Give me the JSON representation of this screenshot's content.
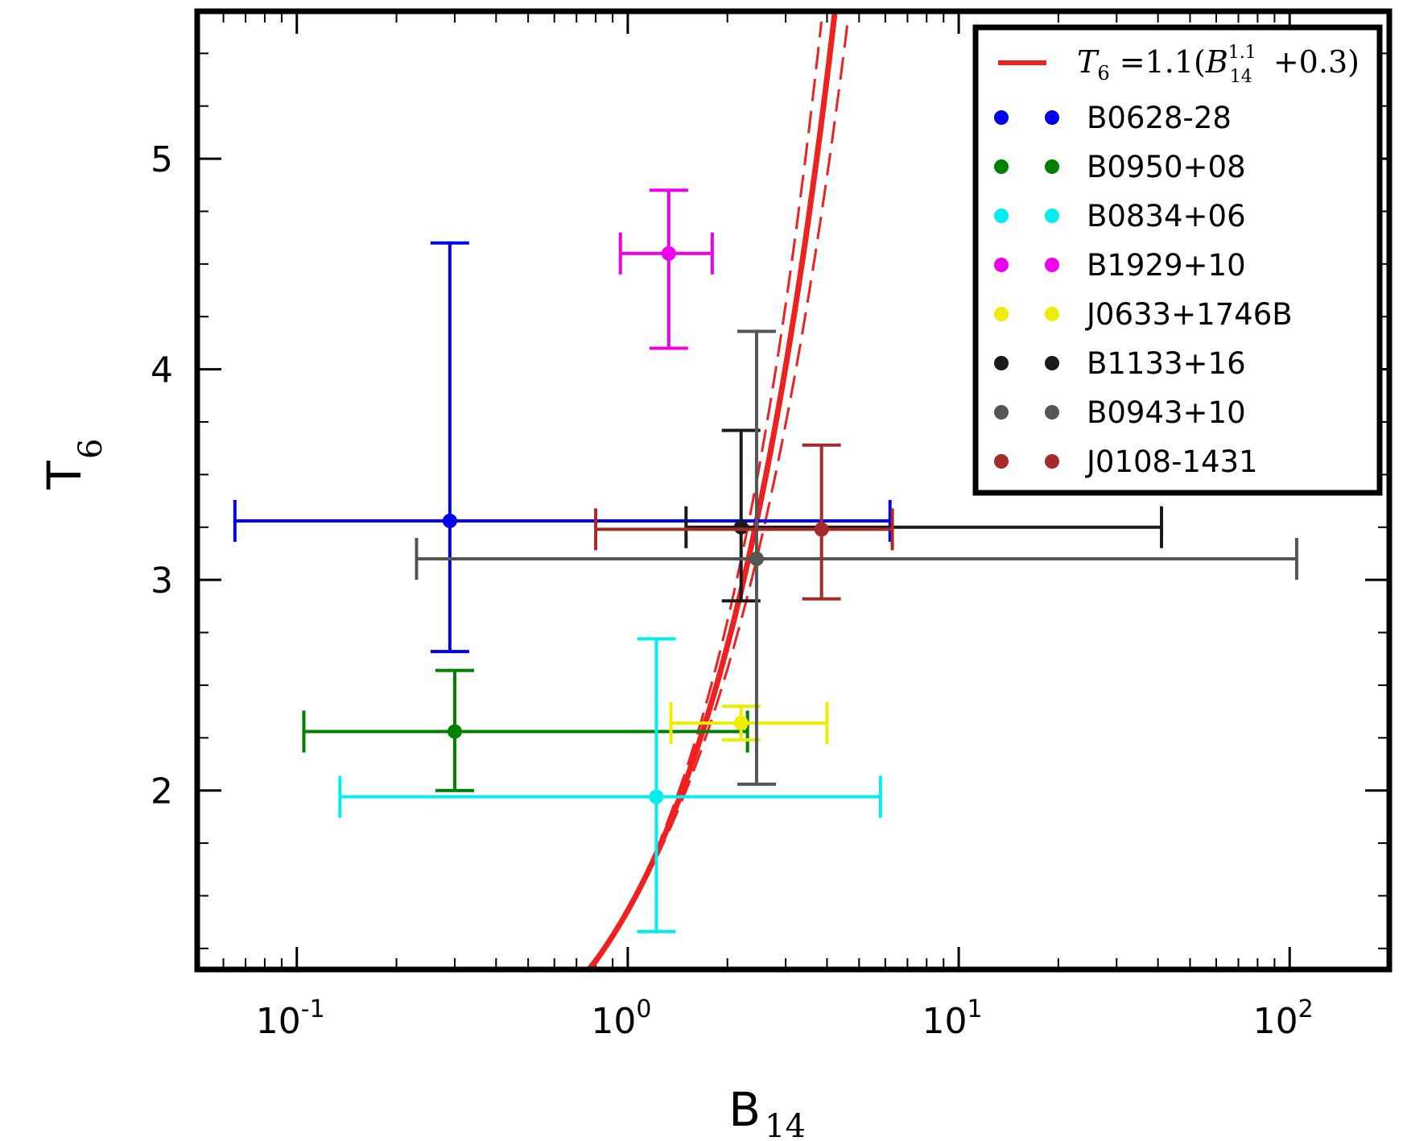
{
  "chart_data": {
    "type": "scatter",
    "xscale": "log",
    "xlim": [
      0.05,
      200
    ],
    "ylim": [
      1.15,
      5.7
    ],
    "xlabel": "B",
    "xlabel_sub": "14",
    "ylabel": "T",
    "ylabel_sub": "6",
    "xticks": [
      {
        "value": 0.1,
        "base": "10",
        "exp": "-1"
      },
      {
        "value": 1,
        "base": "10",
        "exp": "0"
      },
      {
        "value": 10,
        "base": "10",
        "exp": "1"
      },
      {
        "value": 100,
        "base": "10",
        "exp": "2"
      }
    ],
    "yticks": [
      {
        "value": 2,
        "label": "2"
      },
      {
        "value": 3,
        "label": "3"
      },
      {
        "value": 4,
        "label": "4"
      },
      {
        "value": 5,
        "label": "5"
      }
    ],
    "fit": {
      "label": "T6 = 1.1(B14^1.1 + 0.3)",
      "coef": 1.1,
      "exponent": 1.1,
      "offset": 0.3,
      "exponent_low": 1.03,
      "exponent_high": 1.17,
      "color": "#ee2020"
    },
    "legend_position": "upper right",
    "series": [
      {
        "name": "B0628-28",
        "color": "#0000ee",
        "x": 0.29,
        "xerr": [
          0.065,
          6.2
        ],
        "y": 3.28,
        "yerr": [
          2.66,
          4.6
        ]
      },
      {
        "name": "B0950+08",
        "color": "#008000",
        "x": 0.3,
        "xerr": [
          0.105,
          2.3
        ],
        "y": 2.28,
        "yerr": [
          2.0,
          2.57
        ]
      },
      {
        "name": "B0834+06",
        "color": "#00eeee",
        "x": 1.22,
        "xerr": [
          0.135,
          5.8
        ],
        "y": 1.97,
        "yerr": [
          1.33,
          2.72
        ]
      },
      {
        "name": "B1929+10",
        "color": "#ee00ee",
        "x": 1.33,
        "xerr": [
          0.95,
          1.8
        ],
        "y": 4.55,
        "yerr": [
          4.1,
          4.85
        ]
      },
      {
        "name": "J0633+1746B",
        "color": "#eeee00",
        "x": 2.2,
        "xerr": [
          1.35,
          4.0
        ],
        "y": 2.32,
        "yerr": [
          2.24,
          2.4
        ]
      },
      {
        "name": "B1133+16",
        "color": "#1a1a1a",
        "x": 2.2,
        "xerr": [
          1.5,
          41
        ],
        "y": 3.25,
        "yerr": [
          2.9,
          3.71
        ]
      },
      {
        "name": "B0943+10",
        "color": "#555555",
        "x": 2.45,
        "xerr": [
          0.23,
          105
        ],
        "y": 3.1,
        "yerr": [
          2.03,
          4.18
        ]
      },
      {
        "name": "J0108-1431",
        "color": "#a52a2a",
        "x": 3.85,
        "xerr": [
          0.8,
          6.3
        ],
        "y": 3.24,
        "yerr": [
          2.91,
          3.64
        ]
      }
    ]
  }
}
